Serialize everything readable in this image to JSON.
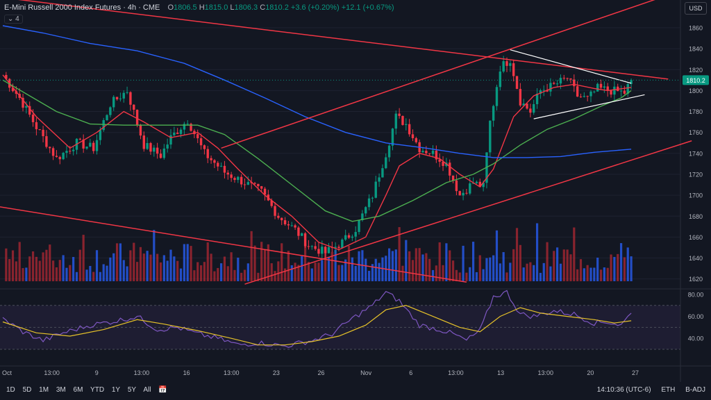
{
  "header": {
    "symbol_title": "E-Mini Russell 2000 Index Futures · 4h · CME",
    "ohlc": [
      {
        "label": "O",
        "value": "1806.5"
      },
      {
        "label": "H",
        "value": "1815.0"
      },
      {
        "label": "L",
        "value": "1806.3"
      },
      {
        "label": "C",
        "value": "1810.2"
      }
    ],
    "change": "+3.6 (+0.20%)",
    "volume_change": "+12.1 (+0.67%)",
    "indicator_count": "4",
    "currency": "USD"
  },
  "colors": {
    "background": "#131722",
    "up": "#089981",
    "down": "#f23645",
    "vol_up": "#2962ff",
    "vol_down": "#b22833",
    "ma_fast": "#f23645",
    "ma_mid": "#4caf50",
    "ma_slow": "#2962ff",
    "trendline": "#f23645",
    "triangle": "#ffffff",
    "rsi": "#7e57c2",
    "rsi_ma": "#e6c229"
  },
  "chart_data": {
    "type": "candlestick",
    "price_axis": {
      "ticks": [
        1860,
        1840,
        1820,
        1800,
        1780,
        1760,
        1740,
        1720,
        1700,
        1680,
        1660,
        1640,
        1620
      ],
      "current_price_label": "1810.2"
    },
    "rsi_axis": {
      "ticks": [
        80.0,
        60.0,
        40.0
      ],
      "labels": [
        "80.00",
        "60.00",
        "40.00"
      ],
      "band": [
        30,
        70
      ]
    },
    "time_axis": {
      "labels": [
        "Oct",
        "13:00",
        "9",
        "13:00",
        "16",
        "13:00",
        "23",
        "26",
        "Nov",
        "6",
        "13:00",
        "13",
        "13:00",
        "20",
        "27"
      ]
    },
    "anchors": [
      {
        "i": 0,
        "p": 1815
      },
      {
        "i": 5,
        "p": 1793
      },
      {
        "i": 10,
        "p": 1765
      },
      {
        "i": 16,
        "p": 1735
      },
      {
        "i": 22,
        "p": 1750
      },
      {
        "i": 27,
        "p": 1745
      },
      {
        "i": 32,
        "p": 1787
      },
      {
        "i": 37,
        "p": 1800
      },
      {
        "i": 42,
        "p": 1748
      },
      {
        "i": 47,
        "p": 1738
      },
      {
        "i": 50,
        "p": 1755
      },
      {
        "i": 55,
        "p": 1772
      },
      {
        "i": 60,
        "p": 1740
      },
      {
        "i": 66,
        "p": 1722
      },
      {
        "i": 72,
        "p": 1712
      },
      {
        "i": 77,
        "p": 1703
      },
      {
        "i": 82,
        "p": 1680
      },
      {
        "i": 87,
        "p": 1667
      },
      {
        "i": 91,
        "p": 1652
      },
      {
        "i": 96,
        "p": 1645
      },
      {
        "i": 101,
        "p": 1655
      },
      {
        "i": 105,
        "p": 1668
      },
      {
        "i": 110,
        "p": 1700
      },
      {
        "i": 114,
        "p": 1740
      },
      {
        "i": 117,
        "p": 1775
      },
      {
        "i": 120,
        "p": 1768
      },
      {
        "i": 124,
        "p": 1745
      },
      {
        "i": 128,
        "p": 1740
      },
      {
        "i": 132,
        "p": 1730
      },
      {
        "i": 136,
        "p": 1700
      },
      {
        "i": 140,
        "p": 1712
      },
      {
        "i": 143,
        "p": 1708
      },
      {
        "i": 145,
        "p": 1770
      },
      {
        "i": 148,
        "p": 1822
      },
      {
        "i": 151,
        "p": 1830
      },
      {
        "i": 154,
        "p": 1790
      },
      {
        "i": 157,
        "p": 1780
      },
      {
        "i": 160,
        "p": 1800
      },
      {
        "i": 164,
        "p": 1805
      },
      {
        "i": 168,
        "p": 1812
      },
      {
        "i": 171,
        "p": 1795
      },
      {
        "i": 174,
        "p": 1792
      },
      {
        "i": 177,
        "p": 1802
      },
      {
        "i": 181,
        "p": 1800
      },
      {
        "i": 185,
        "p": 1798
      },
      {
        "i": 187,
        "p": 1810
      }
    ],
    "moving_averages": [
      {
        "color": "ma_fast",
        "points": [
          [
            0,
            1815
          ],
          [
            10,
            1775
          ],
          [
            20,
            1745
          ],
          [
            28,
            1760
          ],
          [
            36,
            1780
          ],
          [
            42,
            1770
          ],
          [
            50,
            1755
          ],
          [
            58,
            1760
          ],
          [
            64,
            1745
          ],
          [
            70,
            1725
          ],
          [
            78,
            1700
          ],
          [
            86,
            1680
          ],
          [
            94,
            1655
          ],
          [
            100,
            1648
          ],
          [
            108,
            1660
          ],
          [
            114,
            1700
          ],
          [
            118,
            1728
          ],
          [
            124,
            1740
          ],
          [
            130,
            1735
          ],
          [
            136,
            1720
          ],
          [
            142,
            1708
          ],
          [
            146,
            1725
          ],
          [
            152,
            1775
          ],
          [
            158,
            1795
          ],
          [
            164,
            1803
          ],
          [
            170,
            1806
          ],
          [
            176,
            1802
          ],
          [
            180,
            1800
          ],
          [
            187,
            1803
          ]
        ]
      },
      {
        "color": "ma_mid",
        "points": [
          [
            0,
            1810
          ],
          [
            8,
            1795
          ],
          [
            16,
            1780
          ],
          [
            26,
            1768
          ],
          [
            36,
            1767
          ],
          [
            46,
            1767
          ],
          [
            58,
            1767
          ],
          [
            66,
            1758
          ],
          [
            76,
            1735
          ],
          [
            86,
            1710
          ],
          [
            96,
            1685
          ],
          [
            104,
            1675
          ],
          [
            112,
            1680
          ],
          [
            122,
            1695
          ],
          [
            132,
            1712
          ],
          [
            140,
            1720
          ],
          [
            146,
            1730
          ],
          [
            154,
            1748
          ],
          [
            162,
            1763
          ],
          [
            170,
            1773
          ],
          [
            178,
            1785
          ],
          [
            184,
            1793
          ],
          [
            187,
            1800
          ]
        ]
      },
      {
        "color": "ma_slow",
        "points": [
          [
            0,
            1862
          ],
          [
            12,
            1855
          ],
          [
            26,
            1845
          ],
          [
            40,
            1838
          ],
          [
            54,
            1826
          ],
          [
            66,
            1810
          ],
          [
            78,
            1793
          ],
          [
            90,
            1775
          ],
          [
            102,
            1760
          ],
          [
            114,
            1750
          ],
          [
            126,
            1745
          ],
          [
            136,
            1740
          ],
          [
            146,
            1736
          ],
          [
            156,
            1736
          ],
          [
            166,
            1737
          ],
          [
            176,
            1741
          ],
          [
            187,
            1744
          ]
        ]
      }
    ],
    "trendlines": [
      {
        "from": [
          -3,
          1890
        ],
        "to": [
          198,
          1811
        ],
        "color": "trendline"
      },
      {
        "from": [
          65,
          1745
        ],
        "to": [
          205,
          1899
        ],
        "color": "trendline"
      },
      {
        "from": [
          72,
          1615
        ],
        "to": [
          205,
          1752
        ],
        "color": "trendline"
      },
      {
        "from": [
          -3,
          1690
        ],
        "to": [
          138,
          1617
        ],
        "color": "trendline"
      }
    ],
    "triangle": [
      {
        "from": [
          151,
          1839
        ],
        "to": [
          187,
          1807
        ]
      },
      {
        "from": [
          158,
          1773
        ],
        "to": [
          191,
          1796
        ]
      }
    ],
    "rsi_anchors": [
      {
        "i": 0,
        "v": 58
      },
      {
        "i": 6,
        "v": 46
      },
      {
        "i": 12,
        "v": 38
      },
      {
        "i": 18,
        "v": 45
      },
      {
        "i": 26,
        "v": 52
      },
      {
        "i": 34,
        "v": 56
      },
      {
        "i": 40,
        "v": 60
      },
      {
        "i": 46,
        "v": 48
      },
      {
        "i": 52,
        "v": 50
      },
      {
        "i": 58,
        "v": 44
      },
      {
        "i": 64,
        "v": 40
      },
      {
        "i": 70,
        "v": 34
      },
      {
        "i": 76,
        "v": 36
      },
      {
        "i": 84,
        "v": 33
      },
      {
        "i": 92,
        "v": 38
      },
      {
        "i": 98,
        "v": 44
      },
      {
        "i": 104,
        "v": 58
      },
      {
        "i": 110,
        "v": 70
      },
      {
        "i": 114,
        "v": 82
      },
      {
        "i": 118,
        "v": 74
      },
      {
        "i": 124,
        "v": 52
      },
      {
        "i": 130,
        "v": 48
      },
      {
        "i": 134,
        "v": 44
      },
      {
        "i": 138,
        "v": 38
      },
      {
        "i": 142,
        "v": 47
      },
      {
        "i": 146,
        "v": 78
      },
      {
        "i": 150,
        "v": 82
      },
      {
        "i": 154,
        "v": 62
      },
      {
        "i": 158,
        "v": 60
      },
      {
        "i": 164,
        "v": 65
      },
      {
        "i": 170,
        "v": 62
      },
      {
        "i": 176,
        "v": 54
      },
      {
        "i": 180,
        "v": 55
      },
      {
        "i": 184,
        "v": 52
      },
      {
        "i": 187,
        "v": 63
      }
    ],
    "rsi_ma_points": [
      [
        0,
        55
      ],
      [
        10,
        45
      ],
      [
        20,
        42
      ],
      [
        30,
        48
      ],
      [
        40,
        57
      ],
      [
        48,
        53
      ],
      [
        58,
        47
      ],
      [
        68,
        40
      ],
      [
        76,
        34
      ],
      [
        84,
        34
      ],
      [
        92,
        37
      ],
      [
        100,
        42
      ],
      [
        108,
        52
      ],
      [
        114,
        66
      ],
      [
        120,
        70
      ],
      [
        128,
        60
      ],
      [
        136,
        50
      ],
      [
        142,
        46
      ],
      [
        148,
        60
      ],
      [
        154,
        68
      ],
      [
        160,
        63
      ],
      [
        168,
        60
      ],
      [
        176,
        57
      ],
      [
        182,
        54
      ],
      [
        187,
        56
      ]
    ]
  },
  "bottom_bar": {
    "ranges": [
      "1D",
      "5D",
      "1M",
      "3M",
      "6M",
      "YTD",
      "1Y",
      "5Y",
      "All"
    ],
    "time": "14:10:36 (UTC-6)",
    "session": "ETH",
    "adjustment": "B-ADJ"
  }
}
